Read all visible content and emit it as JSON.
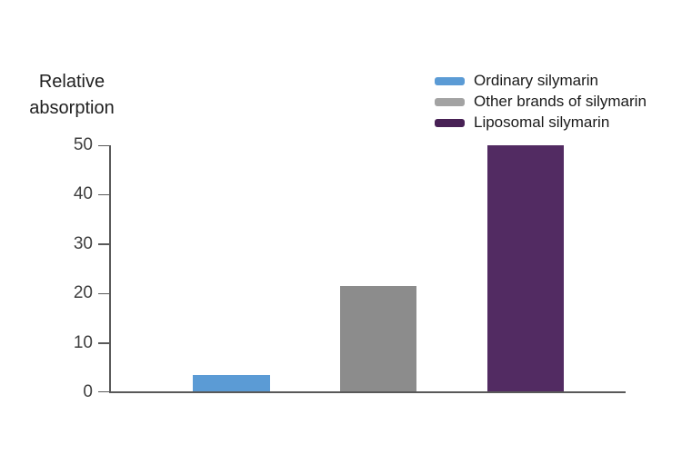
{
  "chart_data": {
    "type": "bar",
    "title": "Relative absorption",
    "ylabel": "Relative absorption",
    "xlabel": "",
    "categories": [
      "Ordinary silymarin",
      "Other brands of silymarin",
      "Liposomal silymarin"
    ],
    "values": [
      3.5,
      21.5,
      50
    ],
    "bar_colors": [
      "#5b9bd5",
      "#8c8c8c",
      "#522b62"
    ],
    "ylim": [
      0,
      50
    ],
    "yticks": [
      0,
      10,
      20,
      30,
      40,
      50
    ],
    "grid": false,
    "legend_position": "top-right"
  },
  "ylabel": {
    "line1": "Relative",
    "line2": "absorption"
  },
  "legend": {
    "items": [
      {
        "label": "Ordinary silymarin",
        "color": "#5b9bd5"
      },
      {
        "label": "Other brands of silymarin",
        "color": "#a3a3a3"
      },
      {
        "label": "Liposomal silymarin",
        "color": "#482155"
      }
    ]
  },
  "axis": {
    "line_color": "#595959",
    "tick_label_color": "#3f3f3f"
  }
}
